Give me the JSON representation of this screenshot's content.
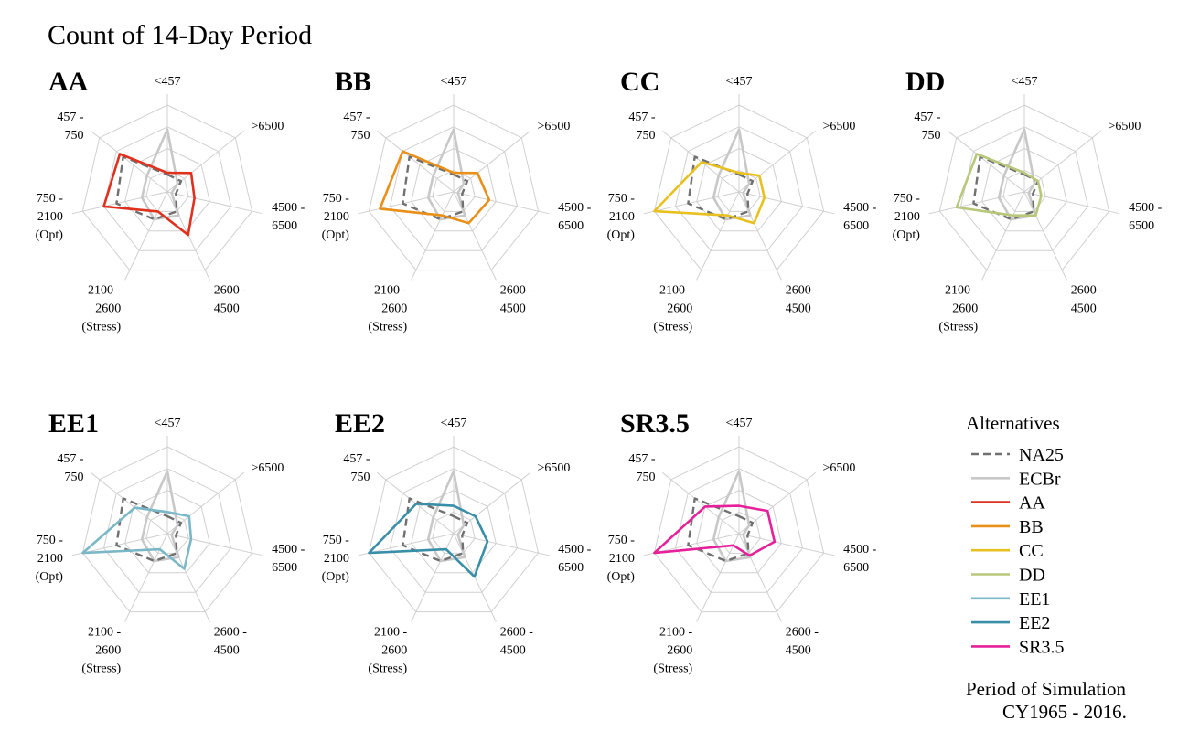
{
  "title": "Count of 14-Day Period",
  "legend": {
    "title": "Alternatives",
    "items": [
      {
        "label": "NA25",
        "color": "#707070",
        "dashed": true
      },
      {
        "label": "ECBr",
        "color": "#c8c8c8",
        "dashed": false
      },
      {
        "label": "AA",
        "color": "#e0301e",
        "dashed": false
      },
      {
        "label": "BB",
        "color": "#e8901a",
        "dashed": false
      },
      {
        "label": "CC",
        "color": "#e8c020",
        "dashed": false
      },
      {
        "label": "DD",
        "color": "#b8c87a",
        "dashed": false
      },
      {
        "label": "EE1",
        "color": "#7ab8c8",
        "dashed": false
      },
      {
        "label": "EE2",
        "color": "#3a8fa8",
        "dashed": false
      },
      {
        "label": "SR3.5",
        "color": "#e6209a",
        "dashed": false
      }
    ]
  },
  "footer": {
    "line1": "Period of Simulation",
    "line2": "CY1965 - 2016."
  },
  "chart_data": {
    "type": "radar",
    "axes": [
      [
        "<457"
      ],
      [
        ">6500"
      ],
      [
        "4500 -",
        "6500"
      ],
      [
        "2600 -",
        "4500"
      ],
      [
        "2100 -",
        "2600",
        "(Stress)"
      ],
      [
        "750 -",
        "2100",
        "(Opt)"
      ],
      [
        "457 -",
        "750"
      ]
    ],
    "rmax": 1,
    "rings": 4,
    "reference_series": [
      {
        "name": "NA25",
        "values": [
          0.2,
          0.2,
          0.1,
          0.25,
          0.35,
          0.6,
          0.65
        ]
      },
      {
        "name": "ECBr",
        "values": [
          0.72,
          0.15,
          0.05,
          0.3,
          0.35,
          0.3,
          0.3
        ]
      }
    ],
    "panels": [
      {
        "title": "AA",
        "series": "AA",
        "values": [
          0.22,
          0.35,
          0.32,
          0.55,
          0.25,
          0.75,
          0.7
        ]
      },
      {
        "title": "BB",
        "series": "BB",
        "values": [
          0.22,
          0.35,
          0.42,
          0.4,
          0.3,
          0.87,
          0.75
        ]
      },
      {
        "title": "CC",
        "series": "CC",
        "values": [
          0.22,
          0.3,
          0.3,
          0.4,
          0.3,
          1.0,
          0.55
        ]
      },
      {
        "title": "DD",
        "series": "DD",
        "values": [
          0.22,
          0.2,
          0.2,
          0.3,
          0.3,
          0.8,
          0.7
        ]
      },
      {
        "title": "EE1",
        "series": "EE1",
        "values": [
          0.25,
          0.32,
          0.28,
          0.45,
          0.2,
          1.0,
          0.48
        ]
      },
      {
        "title": "EE2",
        "series": "EE2",
        "values": [
          0.32,
          0.32,
          0.4,
          0.55,
          0.2,
          1.0,
          0.55
        ]
      },
      {
        "title": "SR3.5",
        "series": "SR3.5",
        "values": [
          0.32,
          0.42,
          0.42,
          0.28,
          0.15,
          1.0,
          0.5
        ]
      }
    ]
  }
}
